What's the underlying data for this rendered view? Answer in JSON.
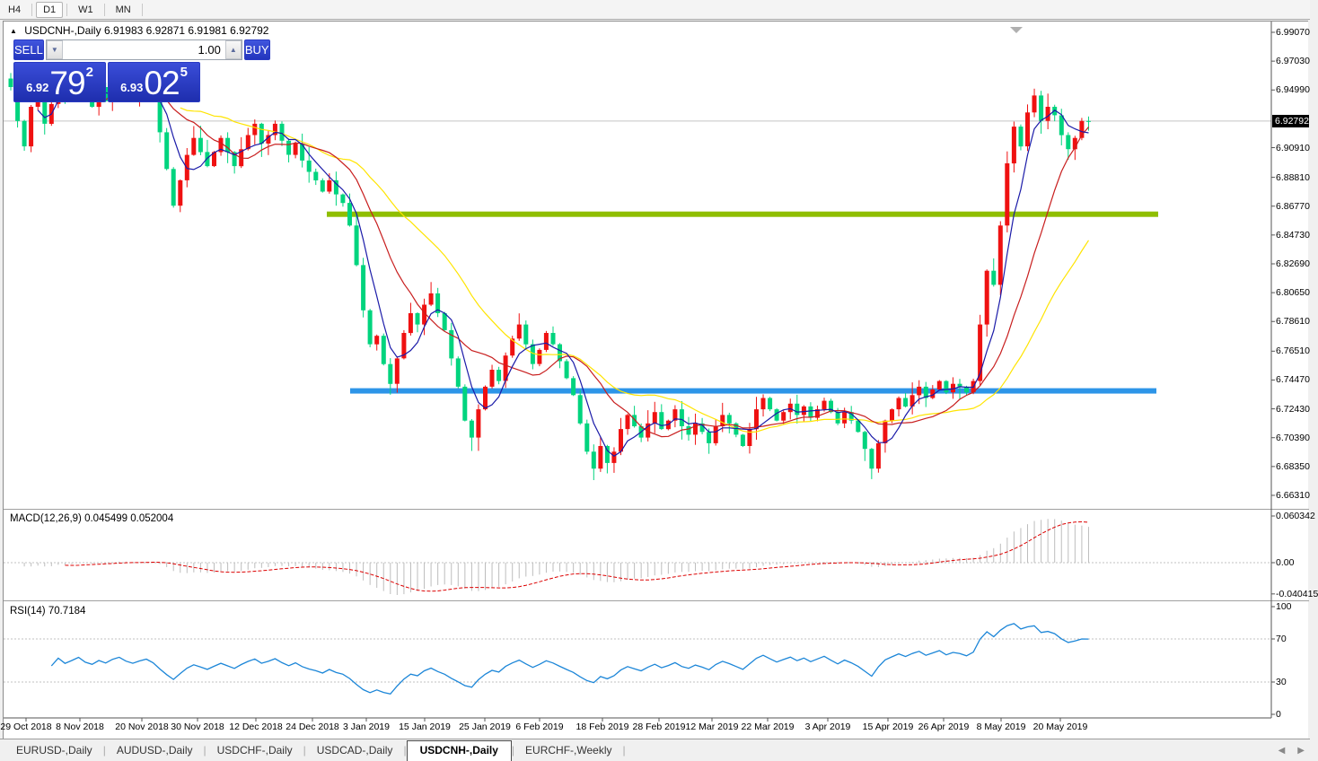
{
  "toolbar": {
    "timeframes": [
      "H4",
      "D1",
      "W1",
      "MN"
    ],
    "active": "D1"
  },
  "chart_header": {
    "symbol": "USDCNH-,Daily",
    "open": "6.91983",
    "high": "6.92871",
    "low": "6.91981",
    "close": "6.92792"
  },
  "trade_panel": {
    "sell_label": "SELL",
    "buy_label": "BUY",
    "volume": "1.00",
    "sell_price_small": "6.92",
    "sell_price_big": "79",
    "sell_price_sup": "2",
    "buy_price_small": "6.93",
    "buy_price_big": "02",
    "buy_price_sup": "5"
  },
  "axis": {
    "price_ticks": [
      "6.99070",
      "6.97030",
      "6.94990",
      "6.90910",
      "6.88810",
      "6.86770",
      "6.84730",
      "6.82690",
      "6.80650",
      "6.78610",
      "6.76510",
      "6.74470",
      "6.72430",
      "6.70390",
      "6.68350",
      "6.66310"
    ],
    "current_price": "6.92792",
    "macd_ticks": [
      {
        "label": "0.060342",
        "value": 0.060342
      },
      {
        "label": "0.00",
        "value": 0
      },
      {
        "label": "-0.040415",
        "value": -0.040415
      }
    ],
    "rsi_ticks": [
      {
        "label": "100",
        "value": 100
      },
      {
        "label": "70",
        "value": 70
      },
      {
        "label": "30",
        "value": 30
      },
      {
        "label": "0",
        "value": 0
      }
    ]
  },
  "indicators": {
    "macd": {
      "name": "MACD(12,26,9)",
      "main": "0.045499",
      "signal": "0.052004"
    },
    "rsi": {
      "name": "RSI(14)",
      "value": "70.7184"
    }
  },
  "dates": [
    "29 Oct 2018",
    "8 Nov 2018",
    "20 Nov 2018",
    "30 Nov 2018",
    "12 Dec 2018",
    "24 Dec 2018",
    "3 Jan 2019",
    "15 Jan 2019",
    "25 Jan 2019",
    "6 Feb 2019",
    "18 Feb 2019",
    "28 Feb 2019",
    "12 Mar 2019",
    "22 Mar 2019",
    "3 Apr 2019",
    "15 Apr 2019",
    "26 Apr 2019",
    "8 May 2019",
    "20 May 2019"
  ],
  "tabs": {
    "items": [
      "EURUSD-,Daily",
      "AUDUSD-,Daily",
      "USDCHF-,Daily",
      "USDCAD-,Daily",
      "USDCNH-,Daily",
      "EURCHF-,Weekly"
    ],
    "active": "USDCNH-,Daily"
  },
  "colors": {
    "bull": "#ef1111",
    "bear": "#00d47e",
    "ma_fast": "#1a1aa8",
    "ma_mid": "#c81e1e",
    "ma_slow": "#ffe400",
    "macd_hist": "#bdbdbd",
    "macd_signal": "#dc0000",
    "rsi_line": "#1c86d8",
    "ray_green": "#8fbe00",
    "ray_blue": "#2d95e8",
    "price_line": "#c4c4c4",
    "level_dash": "#c0c0c0"
  },
  "chart_data": {
    "type": "candlestick",
    "symbol": "USDCNH",
    "timeframe": "Daily",
    "title": "USDCNH-,Daily",
    "ylim": [
      6.6631,
      6.9907
    ],
    "y_tick_step": 0.0204,
    "last_ohlc": {
      "open": 6.91983,
      "high": 6.92871,
      "low": 6.91981,
      "close": 6.92792
    },
    "levels": {
      "green_resistance_ray": 6.862,
      "blue_support_ray": 6.737
    },
    "indicators": {
      "macd_12_26_9": {
        "main": 0.045499,
        "signal": 0.052004,
        "range": [
          -0.040415,
          0.060342
        ]
      },
      "rsi_14": {
        "last": 70.7184,
        "levels": [
          30,
          70
        ]
      }
    },
    "closes": [
      6.952,
      6.928,
      6.91,
      6.938,
      6.95,
      6.926,
      6.94,
      6.958,
      6.944,
      6.952,
      6.962,
      6.946,
      6.938,
      6.952,
      6.942,
      6.956,
      6.964,
      6.95,
      6.942,
      6.95,
      6.956,
      6.944,
      6.92,
      6.894,
      6.868,
      6.886,
      6.904,
      6.916,
      6.906,
      6.896,
      6.906,
      6.916,
      6.906,
      6.896,
      6.908,
      6.918,
      6.926,
      6.912,
      6.918,
      6.926,
      6.914,
      6.904,
      6.912,
      6.9,
      6.892,
      6.886,
      6.878,
      6.886,
      6.876,
      6.87,
      6.854,
      6.826,
      6.794,
      6.77,
      6.776,
      6.756,
      6.742,
      6.76,
      6.778,
      6.792,
      6.784,
      6.798,
      6.806,
      6.792,
      6.78,
      6.76,
      6.74,
      6.716,
      6.704,
      6.724,
      6.74,
      6.752,
      6.744,
      6.762,
      6.774,
      6.784,
      6.77,
      6.756,
      6.766,
      6.778,
      6.77,
      6.758,
      6.746,
      6.734,
      6.714,
      6.694,
      6.682,
      6.698,
      6.686,
      6.694,
      6.71,
      6.72,
      6.712,
      6.704,
      6.714,
      6.722,
      6.71,
      6.716,
      6.724,
      6.712,
      6.706,
      6.714,
      6.708,
      6.7,
      6.712,
      6.72,
      6.714,
      6.706,
      6.698,
      6.71,
      6.724,
      6.732,
      6.724,
      6.716,
      6.722,
      6.728,
      6.72,
      6.726,
      6.718,
      6.724,
      6.73,
      6.722,
      6.714,
      6.722,
      6.716,
      6.708,
      6.696,
      6.682,
      6.7,
      6.716,
      6.724,
      6.732,
      6.726,
      6.734,
      6.74,
      6.732,
      6.738,
      6.744,
      6.736,
      6.742,
      6.74,
      6.736,
      6.744,
      6.784,
      6.822,
      6.812,
      6.854,
      6.898,
      6.924,
      6.91,
      6.934,
      6.946,
      6.928,
      6.938,
      6.932,
      6.918,
      6.908,
      6.916,
      6.928,
      6.92792
    ]
  }
}
